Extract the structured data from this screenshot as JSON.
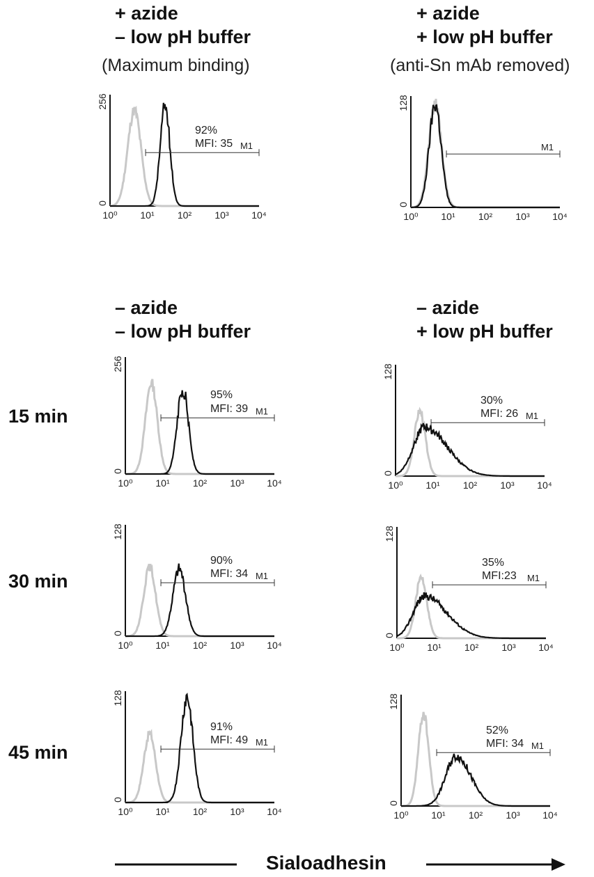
{
  "headers": {
    "col1_top": {
      "line1": "+ azide",
      "line2": "– low pH buffer",
      "note": "(Maximum binding)"
    },
    "col2_top": {
      "line1": "+ azide",
      "line2": "+ low pH buffer",
      "note": "(anti-Sn mAb removed)"
    },
    "col1_bottom": {
      "line1": "– azide",
      "line2": "– low pH buffer"
    },
    "col2_bottom": {
      "line1": "– azide",
      "line2": "+ low pH buffer"
    }
  },
  "row_labels": [
    "15 min",
    "30 min",
    "45 min"
  ],
  "x_axis_title": "Sialoadhesin",
  "colors": {
    "control": "#c8c8c8",
    "sample": "#111111",
    "axis": "#111111"
  },
  "chart_data": [
    {
      "type": "area",
      "id": "p1",
      "ymax": "256",
      "percent": "92%",
      "mfi": "MFI: 35",
      "gate": "M1",
      "x_scale": "log",
      "xlim": [
        1,
        10000
      ],
      "x_ticks": [
        "10⁰",
        "10¹",
        "10²",
        "10³",
        "10⁴"
      ],
      "control_peak": 4.5,
      "sample_peak": 30,
      "gate_range": [
        9,
        10000
      ]
    },
    {
      "type": "area",
      "id": "p2",
      "ymax": "128",
      "percent": "",
      "mfi": "",
      "gate": "M1",
      "x_scale": "log",
      "xlim": [
        1,
        10000
      ],
      "x_ticks": [
        "10⁰",
        "10¹",
        "10²",
        "10³",
        "10⁴"
      ],
      "control_peak": 4.5,
      "sample_peak": 4.5,
      "gate_range": [
        9,
        10000
      ]
    },
    {
      "type": "area",
      "id": "p3",
      "ymax": "256",
      "percent": "95%",
      "mfi": "MFI: 39",
      "gate": "M1",
      "x_scale": "log",
      "xlim": [
        1,
        10000
      ],
      "x_ticks": [
        "10⁰",
        "10¹",
        "10²",
        "10³",
        "10⁴"
      ],
      "control_peak": 5,
      "sample_peak": 35,
      "gate_range": [
        9,
        10000
      ]
    },
    {
      "type": "area",
      "id": "p4",
      "ymax": "128",
      "percent": "30%",
      "mfi": "MFI: 26",
      "gate": "M1",
      "x_scale": "log",
      "xlim": [
        1,
        10000
      ],
      "x_ticks": [
        "10⁰",
        "10¹",
        "10²",
        "10³",
        "10⁴"
      ],
      "control_peak": 4.5,
      "sample_peak": 6,
      "gate_range": [
        9,
        10000
      ]
    },
    {
      "type": "area",
      "id": "p5",
      "ymax": "128",
      "percent": "90%",
      "mfi": "MFI: 34",
      "gate": "M1",
      "x_scale": "log",
      "xlim": [
        1,
        10000
      ],
      "x_ticks": [
        "10⁰",
        "10¹",
        "10²",
        "10³",
        "10⁴"
      ],
      "control_peak": 4.5,
      "sample_peak": 28,
      "gate_range": [
        9,
        10000
      ]
    },
    {
      "type": "area",
      "id": "p6",
      "ymax": "128",
      "percent": "35%",
      "mfi": "MFI:23",
      "gate": "M1",
      "x_scale": "log",
      "xlim": [
        1,
        10000
      ],
      "x_ticks": [
        "10⁰",
        "10¹",
        "10²",
        "10³",
        "10⁴"
      ],
      "control_peak": 4.5,
      "sample_peak": 5.5,
      "gate_range": [
        9,
        10000
      ]
    },
    {
      "type": "area",
      "id": "p7",
      "ymax": "128",
      "percent": "91%",
      "mfi": "MFI: 49",
      "gate": "M1",
      "x_scale": "log",
      "xlim": [
        1,
        10000
      ],
      "x_ticks": [
        "10⁰",
        "10¹",
        "10²",
        "10³",
        "10⁴"
      ],
      "control_peak": 4.5,
      "sample_peak": 45,
      "gate_range": [
        9,
        10000
      ]
    },
    {
      "type": "area",
      "id": "p8",
      "ymax": "128",
      "percent": "52%",
      "mfi": "MFI: 34",
      "gate": "M1",
      "x_scale": "log",
      "xlim": [
        1,
        10000
      ],
      "x_ticks": [
        "10⁰",
        "10¹",
        "10²",
        "10³",
        "10⁴"
      ],
      "control_peak": 4,
      "sample_peak": 30,
      "gate_range": [
        9,
        10000
      ]
    }
  ]
}
